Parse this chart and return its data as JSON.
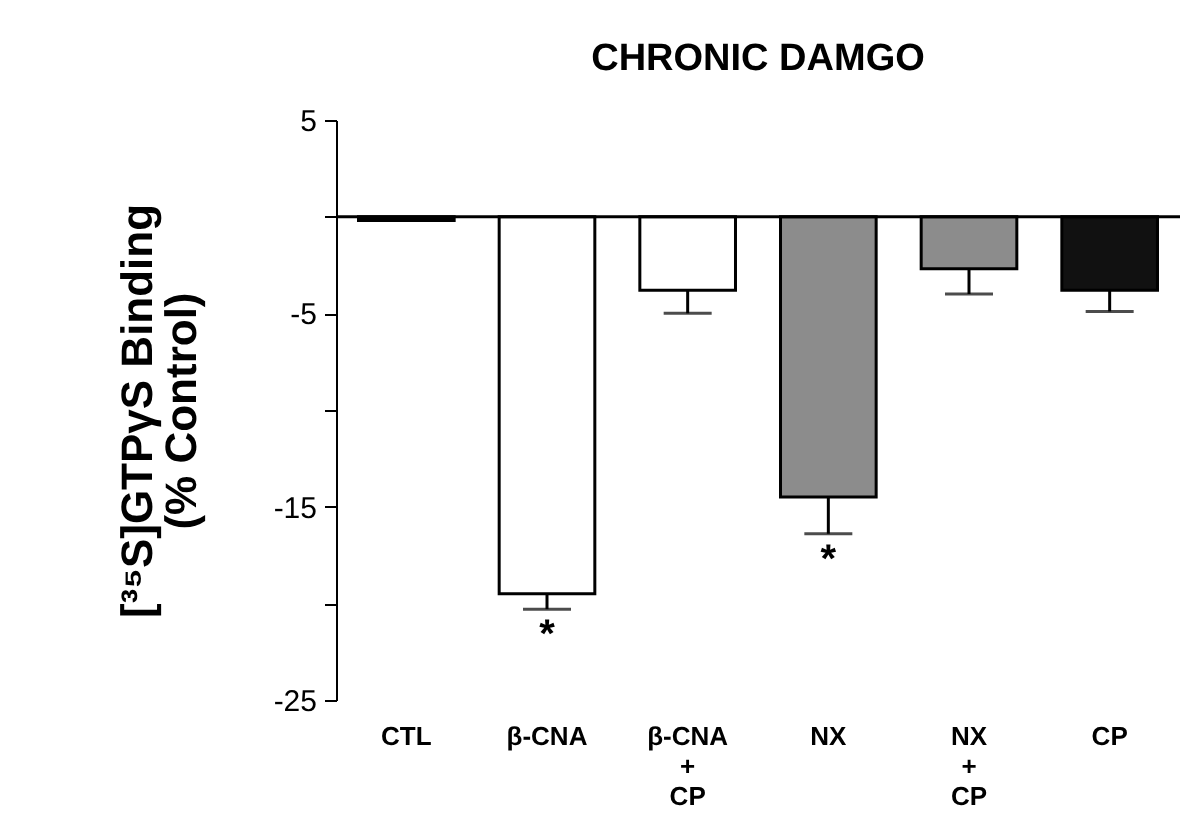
{
  "chart_data": {
    "type": "bar",
    "title": "CHRONIC DAMGO",
    "ylabel": "[³⁵S]GTPγS Binding\n(% Control)",
    "categories": [
      "CTL",
      "β-CNA",
      "β-CNA\n+\nCP",
      "NX",
      "NX\n+\nCP",
      "CP"
    ],
    "values": [
      -0.2,
      -19.5,
      -3.8,
      -14.5,
      -2.7,
      -3.8
    ],
    "colors": [
      "#000000",
      "#ffffff",
      "#ffffff",
      "#8c8c8c",
      "#8c8c8c",
      "#111111"
    ],
    "errors": [
      null,
      [
        -20.3,
        -19.5
      ],
      [
        -5.0,
        -3.8
      ],
      [
        -16.4,
        -14.5
      ],
      [
        -4.0,
        -2.7
      ],
      [
        -4.9,
        -3.8
      ]
    ],
    "ylim": [
      -25,
      5
    ],
    "yticks": [
      5,
      {
        "value": 0,
        "label": null
      },
      -5,
      {
        "value": -10,
        "label": null
      },
      -15,
      {
        "value": -20,
        "label": null
      },
      -25
    ],
    "ref_lines": [
      {
        "axis": "y",
        "value": 0
      }
    ],
    "annotations": [
      {
        "text": "*",
        "x": "β-CNA",
        "y": -20.3
      },
      {
        "text": "*",
        "x": "NX",
        "y": -16.4
      }
    ]
  }
}
